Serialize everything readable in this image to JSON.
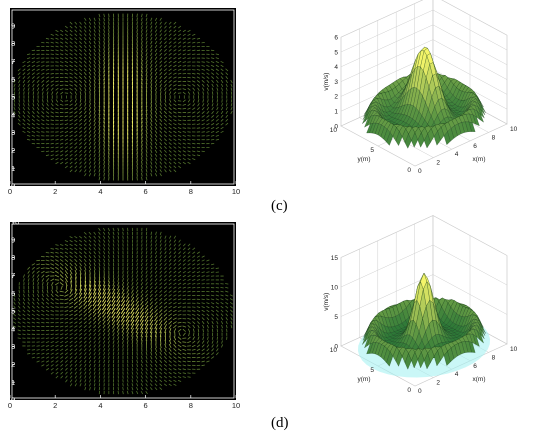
{
  "panel_labels": [
    "(c)",
    "(d)"
  ],
  "colors": {
    "background": "#000000",
    "axis": "#ffffff",
    "arrow_low": "#1f4a1a",
    "arrow_high": "#f4f56a",
    "surface_low": "#1f6f33",
    "surface_high": "#f4f56a",
    "grid": "#cfcfcf",
    "halo": "#9ff0f0"
  },
  "chart_data": [
    {
      "panel": "(c)",
      "type": "quiver",
      "xlim": [
        0,
        10
      ],
      "ylim": [
        0,
        10
      ],
      "xticks": [
        "0",
        "2",
        "4",
        "6",
        "8",
        "10"
      ],
      "yticks": [
        "0",
        "1",
        "2",
        "3",
        "4",
        "5",
        "6",
        "7",
        "8",
        "9"
      ],
      "domain": "elliptical tank centered at (5, 5)",
      "vortices": [
        [
          2.5,
          5
        ],
        [
          7.5,
          5
        ]
      ],
      "jet": "strong vertical flow along x = 5"
    },
    {
      "panel": "(c)",
      "type": "surface3d",
      "xlabel": "x(m)",
      "ylabel": "y(m)",
      "zlabel": "v(m/s)",
      "xticks": [
        "0",
        "2",
        "4",
        "6",
        "8",
        "10"
      ],
      "yticks": [
        "0",
        "5",
        "10"
      ],
      "zticks": [
        "0",
        "1",
        "2",
        "3",
        "4",
        "5",
        "6"
      ],
      "zlim": [
        0,
        6
      ],
      "peak": {
        "x": 5,
        "y": 5,
        "v": 5
      }
    },
    {
      "panel": "(d)",
      "type": "quiver",
      "xlim": [
        0,
        10
      ],
      "ylim": [
        0,
        10
      ],
      "xticks": [
        "0",
        "2",
        "4",
        "6",
        "8",
        "10"
      ],
      "yticks": [
        "0",
        "1",
        "2",
        "3",
        "4",
        "5",
        "6",
        "7",
        "8",
        "9",
        "10"
      ],
      "domain": "elliptical tank centered at (5, 5)",
      "vortices": [
        [
          2.5,
          6
        ],
        [
          7.5,
          4
        ]
      ],
      "jet": "diagonal flow through center"
    },
    {
      "panel": "(d)",
      "type": "surface3d",
      "xlabel": "x(m)",
      "ylabel": "y(m)",
      "zlabel": "v(m/s)",
      "xticks": [
        "0",
        "2",
        "4",
        "6",
        "8",
        "10"
      ],
      "yticks": [
        "0",
        "5",
        "10"
      ],
      "zticks": [
        "0",
        "5",
        "10",
        "15"
      ],
      "zlim": [
        0,
        15
      ],
      "peak": {
        "x": 5,
        "y": 5,
        "v": 12
      }
    }
  ]
}
